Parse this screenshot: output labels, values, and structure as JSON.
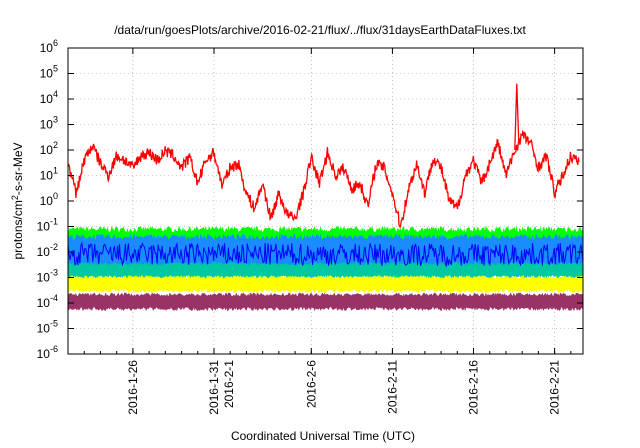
{
  "chart_data": {
    "type": "line",
    "title": "/data/run/goesPlots/archive/2016-02-21/flux/../flux/31daysEarthDataFluxes.txt",
    "xlabel": "Coordinated Universal Time (UTC)",
    "ylabel": {
      "prefix": "protons/cm",
      "sup": "2",
      "suffix": "-s-sr-MeV"
    },
    "log_y": true,
    "ylim": [
      1e-06,
      1000000.0
    ],
    "xlim": [
      "2016-01-22",
      "2016-02-22 18:00"
    ],
    "grid": true,
    "yticks": [
      {
        "value": 1e-06,
        "base": "10",
        "exp": "-6"
      },
      {
        "value": 1e-05,
        "base": "10",
        "exp": "-5"
      },
      {
        "value": 0.0001,
        "base": "10",
        "exp": "-4"
      },
      {
        "value": 0.001,
        "base": "10",
        "exp": "-3"
      },
      {
        "value": 0.01,
        "base": "10",
        "exp": "-2"
      },
      {
        "value": 0.1,
        "base": "10",
        "exp": "-1"
      },
      {
        "value": 1,
        "base": "10",
        "exp": "0"
      },
      {
        "value": 10,
        "base": "10",
        "exp": "1"
      },
      {
        "value": 100,
        "base": "10",
        "exp": "2"
      },
      {
        "value": 1000,
        "base": "10",
        "exp": "3"
      },
      {
        "value": 10000,
        "base": "10",
        "exp": "4"
      },
      {
        "value": 100000,
        "base": "10",
        "exp": "5"
      },
      {
        "value": 1000000,
        "base": "10",
        "exp": "6"
      }
    ],
    "xticks": [
      {
        "date": "2016-01-26",
        "lines": [
          "2016-1-26"
        ]
      },
      {
        "date": "2016-01-31",
        "lines": [
          "2016-1-31",
          "2016-2-1"
        ]
      },
      {
        "date": "2016-02-06",
        "lines": [
          "2016-2-6"
        ]
      },
      {
        "date": "2016-02-11",
        "lines": [
          "2016-2-11"
        ]
      },
      {
        "date": "2016-02-16",
        "lines": [
          "2016-2-16"
        ]
      },
      {
        "date": "2016-02-21",
        "lines": [
          "2016-2-21"
        ]
      }
    ],
    "series": [
      {
        "color": "#ff0000",
        "x": [
          "2016-01-22",
          "2016-01-22 12:00",
          "2016-01-23",
          "2016-01-23 12:00",
          "2016-01-24",
          "2016-01-24 12:00",
          "2016-01-25",
          "2016-01-25 12:00",
          "2016-01-26",
          "2016-01-26 12:00",
          "2016-01-27",
          "2016-01-27 12:00",
          "2016-01-28",
          "2016-01-28 12:00",
          "2016-01-29",
          "2016-01-29 12:00",
          "2016-01-30",
          "2016-01-30 12:00",
          "2016-01-31",
          "2016-01-31 12:00",
          "2016-02-01",
          "2016-02-01 12:00",
          "2016-02-02",
          "2016-02-02 12:00",
          "2016-02-03",
          "2016-02-03 12:00",
          "2016-02-04",
          "2016-02-04 12:00",
          "2016-02-05",
          "2016-02-05 12:00",
          "2016-02-06",
          "2016-02-06 12:00",
          "2016-02-07",
          "2016-02-07 12:00",
          "2016-02-08",
          "2016-02-08 12:00",
          "2016-02-09",
          "2016-02-09 12:00",
          "2016-02-10",
          "2016-02-10 12:00",
          "2016-02-11",
          "2016-02-11 12:00",
          "2016-02-12",
          "2016-02-12 12:00",
          "2016-02-13",
          "2016-02-13 12:00",
          "2016-02-14",
          "2016-02-14 12:00",
          "2016-02-15",
          "2016-02-15 12:00",
          "2016-02-16",
          "2016-02-16 12:00",
          "2016-02-17",
          "2016-02-17 12:00",
          "2016-02-18",
          "2016-02-18 12:00",
          "2016-02-19",
          "2016-02-19 12:00",
          "2016-02-20",
          "2016-02-20 12:00",
          "2016-02-21",
          "2016-02-21 12:00",
          "2016-02-22",
          "2016-02-22 12:00"
        ],
        "y": [
          30,
          2,
          40,
          150,
          30,
          10,
          60,
          40,
          20,
          60,
          80,
          40,
          90,
          60,
          20,
          50,
          5,
          40,
          80,
          4,
          20,
          30,
          2,
          0.5,
          5,
          0.2,
          2,
          0.3,
          0.2,
          2,
          50,
          5,
          80,
          10,
          20,
          3,
          5,
          0.6,
          30,
          20,
          2,
          0.1,
          3,
          30,
          2,
          50,
          20,
          1,
          0.5,
          10,
          40,
          5,
          30,
          200,
          10,
          80,
          400,
          200,
          20,
          60,
          2,
          10,
          60,
          30
        ]
      },
      {
        "color": "#00ff00",
        "band": true,
        "x": [
          "2016-01-22",
          "2016-02-22 18:00"
        ],
        "y": [
          0.03,
          0.03
        ],
        "ylow": [
          0.0008,
          0.0008
        ],
        "yhigh": [
          0.1,
          0.1
        ]
      },
      {
        "color": "#1a8cff",
        "band": true,
        "x": [
          "2016-01-22",
          "2016-02-22 18:00"
        ],
        "y": [
          0.015,
          0.015
        ],
        "ylow": [
          0.001,
          0.001
        ],
        "yhigh": [
          0.05,
          0.05
        ]
      },
      {
        "color": "#0000ff",
        "x": [
          "2016-01-22",
          "2016-02-22 18:00"
        ],
        "y": [
          0.008,
          0.008
        ]
      },
      {
        "color": "#00c8a0",
        "band": true,
        "x": [
          "2016-01-22",
          "2016-02-22 18:00"
        ],
        "y": [
          0.002,
          0.002
        ],
        "ylow": [
          0.0009,
          0.0009
        ],
        "yhigh": [
          0.004,
          0.004
        ]
      },
      {
        "color": "#ffff00",
        "band": true,
        "x": [
          "2016-01-22",
          "2016-02-22 18:00"
        ],
        "y": [
          0.0006,
          0.0006
        ],
        "ylow": [
          0.00025,
          0.00025
        ],
        "yhigh": [
          0.0012,
          0.0012
        ]
      },
      {
        "color": "#993366",
        "band": true,
        "x": [
          "2016-01-22",
          "2016-02-22 18:00"
        ],
        "y": [
          0.00012,
          0.00012
        ],
        "ylow": [
          5e-05,
          5e-05
        ],
        "yhigh": [
          0.00025,
          0.00025
        ]
      }
    ]
  }
}
